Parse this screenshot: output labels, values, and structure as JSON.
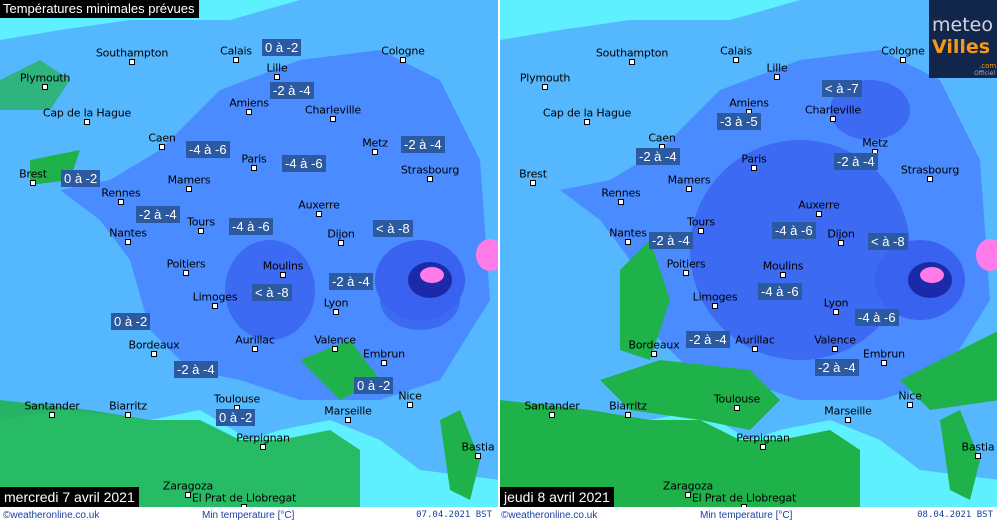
{
  "title": "Températures minimales prévues",
  "colors": {
    "sea": "#5ff0ff",
    "land_light": "#55b8ff",
    "land_mid": "#4a8cff",
    "land_dark": "#3a62f0",
    "very_cold": "#1a2aa8",
    "frost_pink": "#ff7ce8",
    "mild_green": "#1fb24a",
    "label_bg": "#2c5aa0"
  },
  "logo": {
    "line1": "meteo",
    "line2": "Villes",
    "suffix": ".com",
    "tag": "Officiel"
  },
  "panels": [
    {
      "date": "mercredi 7 avril 2021",
      "footer": {
        "source": "©weatheronline.co.uk",
        "variable": "Min temperature [°C]",
        "stamp": "07.04.2021 BST"
      },
      "labels": [
        "0 à -2",
        "-2 à -4",
        "-4 à -6",
        "-4 à -6",
        "-2 à -4",
        "0 à -2",
        "-2 à -4",
        "-4 à -6",
        "< à -8",
        "< à -8",
        "-2 à -4",
        "0 à -2",
        "-2 à -4",
        "0 à -2",
        "0 à -2"
      ]
    },
    {
      "date": "jeudi 8 avril 2021",
      "footer": {
        "source": "©weatheronline.co.uk",
        "variable": "Min temperature [°C]",
        "stamp": "08.04.2021 BST"
      },
      "labels": [
        "< à -7",
        "-3 à -5",
        "-2 à -4",
        "-2 à -4",
        "-2 à -4",
        "-4 à -6",
        "< à -8",
        "-4 à -6",
        "-4 à -6",
        "-2 à -4",
        "-2 à -4"
      ]
    }
  ],
  "cities": [
    "Southampton",
    "Calais",
    "Lille",
    "Cologne",
    "Plymouth",
    "Amiens",
    "Charleville",
    "Cap de la Hague",
    "Caen",
    "Metz",
    "Paris",
    "Brest",
    "Mamers",
    "Strasbourg",
    "Rennes",
    "Tours",
    "Auxerre",
    "Nantes",
    "Dijon",
    "Poitiers",
    "Moulins",
    "Limoges",
    "Lyon",
    "Bordeaux",
    "Aurillac",
    "Valence",
    "Embrun",
    "Nice",
    "Toulouse",
    "Santander",
    "Biarritz",
    "Marseille",
    "Perpignan",
    "Bastia",
    "Zaragoza",
    "El Prat de Llobregat"
  ]
}
